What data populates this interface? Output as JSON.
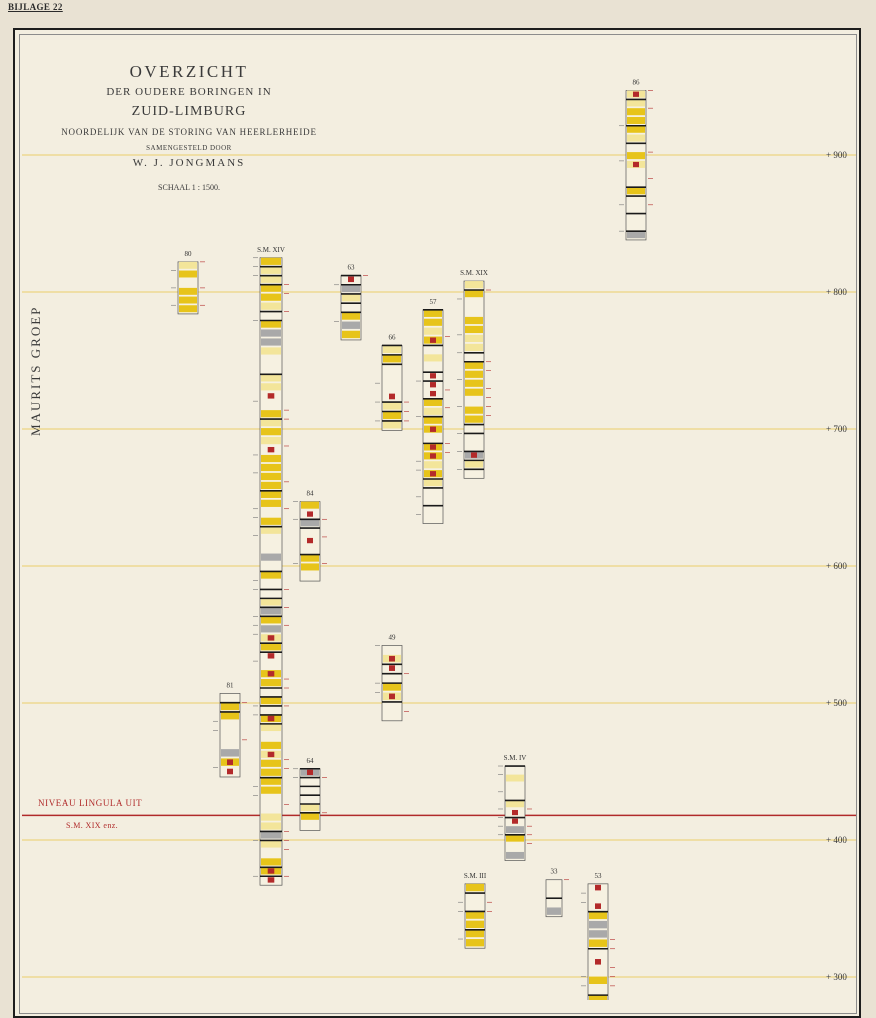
{
  "appendix_label": "BIJLAGE 22",
  "title": {
    "main": "OVERZICHT",
    "sub": "DER OUDERE BORINGEN IN",
    "region": "ZUID-LIMBURG",
    "north": "NOORDELIJK VAN DE STORING VAN HEERLERHEIDE",
    "compiled": "SAMENGESTELD DOOR",
    "author": "W. J. JONGMANS",
    "scale": "SCHAAL 1 : 1500."
  },
  "group_label": "MAURITS GROEP",
  "marker": {
    "name": "NIVEAU LINGULA UIT",
    "reference": "S.M. XIX enz.",
    "color": "#b02a2a",
    "depth": 418
  },
  "depth_axis": {
    "ticks": [
      {
        "value": 900,
        "label": "+ 900"
      },
      {
        "value": 800,
        "label": "+ 800"
      },
      {
        "value": 700,
        "label": "+ 700"
      },
      {
        "value": 600,
        "label": "+ 600"
      },
      {
        "value": 500,
        "label": "+ 500"
      },
      {
        "value": 400,
        "label": "+ 400"
      },
      {
        "value": 300,
        "label": "+ 300"
      }
    ]
  },
  "colors": {
    "seam": "#1a1a1a",
    "coal_yellow": "#e7c41a",
    "pale_yellow": "#f3e59a",
    "gray": "#a9a9a9",
    "red": "#b32a2a",
    "gridline": "#ebcf6a"
  },
  "chart_data": {
    "type": "table",
    "boreholes": [
      {
        "name": "86",
        "top": 947,
        "bottom": 838
      },
      {
        "name": "80",
        "top": 822,
        "bottom": 784
      },
      {
        "name": "S.M. XIV",
        "top": 825,
        "bottom": 367
      },
      {
        "name": "63",
        "top": 812,
        "bottom": 765
      },
      {
        "name": "66",
        "top": 761,
        "bottom": 699
      },
      {
        "name": "57",
        "top": 787,
        "bottom": 631
      },
      {
        "name": "S.M. XIX",
        "top": 808,
        "bottom": 664
      },
      {
        "name": "84",
        "top": 647,
        "bottom": 589
      },
      {
        "name": "49",
        "top": 542,
        "bottom": 487
      },
      {
        "name": "81",
        "top": 507,
        "bottom": 446
      },
      {
        "name": "64",
        "top": 452,
        "bottom": 407
      },
      {
        "name": "S.M. IV",
        "top": 454,
        "bottom": 385
      },
      {
        "name": "S.M. III",
        "top": 368,
        "bottom": 321
      },
      {
        "name": "33",
        "top": 371,
        "bottom": 344
      },
      {
        "name": "53",
        "top": 368,
        "bottom": 280
      }
    ]
  }
}
